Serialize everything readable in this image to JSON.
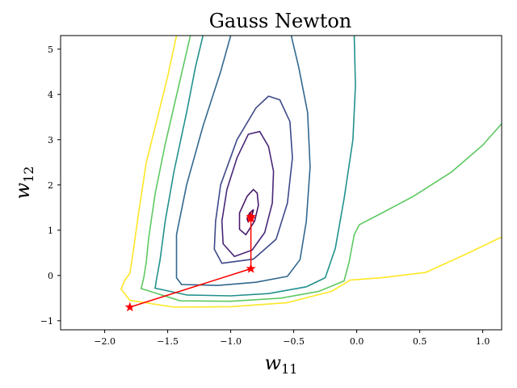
{
  "chart_data": {
    "type": "contour",
    "title": "Gauss Newton",
    "xlabel": "w",
    "xlabel_sub": "11",
    "ylabel": "w",
    "ylabel_sub": "12",
    "xlim": [
      -2.35,
      1.15
    ],
    "ylim": [
      -1.2,
      5.3
    ],
    "xticks": [
      -2.0,
      -1.5,
      -1.0,
      -0.5,
      0.0,
      0.5,
      1.0
    ],
    "xtick_labels": [
      "−2.0",
      "−1.5",
      "−1.0",
      "−0.5",
      "0.0",
      "0.5",
      "1.0"
    ],
    "yticks": [
      -1,
      0,
      1,
      2,
      3,
      4,
      5
    ],
    "ytick_labels": [
      "−1",
      "0",
      "1",
      "2",
      "3",
      "4",
      "5"
    ],
    "grid": false,
    "contours": [
      {
        "color": "#440154",
        "points": [
          [
            -0.86,
            1.18
          ],
          [
            -0.83,
            1.34
          ],
          [
            -0.82,
            1.45
          ],
          [
            -0.85,
            1.38
          ],
          [
            -0.87,
            1.25
          ],
          [
            -0.86,
            1.18
          ]
        ]
      },
      {
        "color": "#481a6c",
        "points": [
          [
            -0.88,
            0.9
          ],
          [
            -0.81,
            1.2
          ],
          [
            -0.78,
            1.55
          ],
          [
            -0.79,
            1.82
          ],
          [
            -0.82,
            1.9
          ],
          [
            -0.87,
            1.75
          ],
          [
            -0.93,
            1.38
          ],
          [
            -0.93,
            1.02
          ],
          [
            -0.88,
            0.9
          ]
        ]
      },
      {
        "color": "#482878",
        "points": [
          [
            -0.97,
            0.42
          ],
          [
            -0.83,
            0.56
          ],
          [
            -0.73,
            0.95
          ],
          [
            -0.67,
            1.6
          ],
          [
            -0.66,
            2.3
          ],
          [
            -0.7,
            2.85
          ],
          [
            -0.77,
            3.18
          ],
          [
            -0.86,
            3.12
          ],
          [
            -0.95,
            2.6
          ],
          [
            -1.03,
            1.9
          ],
          [
            -1.07,
            1.2
          ],
          [
            -1.06,
            0.7
          ],
          [
            -0.97,
            0.42
          ]
        ]
      },
      {
        "color": "#3e4989",
        "points": [
          [
            -1.07,
            0.27
          ],
          [
            -0.82,
            0.36
          ],
          [
            -0.64,
            0.8
          ],
          [
            -0.55,
            1.6
          ],
          [
            -0.51,
            2.6
          ],
          [
            -0.53,
            3.4
          ],
          [
            -0.61,
            3.88
          ],
          [
            -0.7,
            3.96
          ],
          [
            -0.8,
            3.7
          ],
          [
            -0.95,
            3.0
          ],
          [
            -1.08,
            2.0
          ],
          [
            -1.12,
            1.2
          ],
          [
            -1.13,
            0.58
          ],
          [
            -1.07,
            0.27
          ]
        ]
      },
      {
        "color": "#31688e",
        "points": [
          [
            -1.39,
            -0.2
          ],
          [
            -1.1,
            -0.22
          ],
          [
            -0.8,
            -0.15
          ],
          [
            -0.55,
            -0.02
          ],
          [
            -0.45,
            0.35
          ],
          [
            -0.4,
            1.2
          ],
          [
            -0.37,
            2.4
          ],
          [
            -0.39,
            3.6
          ],
          [
            -0.46,
            4.6
          ],
          [
            -0.52,
            5.3
          ]
        ]
      },
      {
        "color": "#31688e",
        "points": [
          [
            -1.39,
            -0.2
          ],
          [
            -1.43,
            -0.05
          ],
          [
            -1.43,
            0.9
          ],
          [
            -1.35,
            2.0
          ],
          [
            -1.22,
            3.3
          ],
          [
            -1.08,
            4.5
          ],
          [
            -1.0,
            5.3
          ]
        ]
      },
      {
        "color": "#21918c",
        "points": [
          [
            -1.6,
            -0.28
          ],
          [
            -1.35,
            -0.43
          ],
          [
            -1.0,
            -0.45
          ],
          [
            -0.7,
            -0.4
          ],
          [
            -0.4,
            -0.25
          ],
          [
            -0.25,
            -0.05
          ],
          [
            -0.17,
            0.6
          ],
          [
            -0.1,
            1.7
          ],
          [
            -0.03,
            3.0
          ],
          [
            -0.01,
            4.2
          ],
          [
            -0.02,
            5.3
          ]
        ]
      },
      {
        "color": "#21918c",
        "points": [
          [
            -1.6,
            -0.28
          ],
          [
            -1.59,
            -0.1
          ],
          [
            -1.56,
            0.35
          ],
          [
            -1.52,
            1.2
          ],
          [
            -1.45,
            2.3
          ],
          [
            -1.35,
            3.6
          ],
          [
            -1.28,
            4.6
          ],
          [
            -1.22,
            5.3
          ]
        ]
      },
      {
        "color": "#5ec962",
        "points": [
          [
            -1.71,
            -0.29
          ],
          [
            -1.4,
            -0.56
          ],
          [
            -1.0,
            -0.57
          ],
          [
            -0.6,
            -0.5
          ],
          [
            -0.3,
            -0.35
          ],
          [
            -0.1,
            -0.12
          ],
          [
            -0.06,
            0.3
          ],
          [
            -0.02,
            0.9
          ],
          [
            0.02,
            1.12
          ],
          [
            0.2,
            1.38
          ],
          [
            0.45,
            1.75
          ],
          [
            0.75,
            2.28
          ],
          [
            1.0,
            2.88
          ],
          [
            1.15,
            3.35
          ]
        ]
      },
      {
        "color": "#5ec962",
        "points": [
          [
            -1.71,
            -0.29
          ],
          [
            -1.69,
            -0.05
          ],
          [
            -1.67,
            0.3
          ],
          [
            -1.65,
            0.85
          ],
          [
            -1.6,
            1.8
          ],
          [
            -1.52,
            2.9
          ],
          [
            -1.42,
            4.1
          ],
          [
            -1.32,
            5.3
          ]
        ]
      },
      {
        "color": "#fde725",
        "points": [
          [
            -1.87,
            -0.3
          ],
          [
            -1.8,
            -0.55
          ],
          [
            -1.45,
            -0.7
          ],
          [
            -1.0,
            -0.69
          ],
          [
            -0.55,
            -0.6
          ],
          [
            -0.2,
            -0.35
          ],
          [
            -0.05,
            -0.1
          ],
          [
            0.2,
            -0.05
          ],
          [
            0.55,
            0.07
          ],
          [
            0.85,
            0.45
          ],
          [
            1.15,
            0.85
          ]
        ]
      },
      {
        "color": "#fde725",
        "points": [
          [
            -1.87,
            -0.3
          ],
          [
            -1.84,
            -0.1
          ],
          [
            -1.8,
            0.05
          ],
          [
            -1.77,
            0.6
          ],
          [
            -1.73,
            1.4
          ],
          [
            -1.67,
            2.5
          ],
          [
            -1.58,
            3.5
          ],
          [
            -1.5,
            4.4
          ],
          [
            -1.43,
            5.3
          ]
        ]
      }
    ],
    "path": {
      "color": "#ff0000",
      "points": [
        [
          -1.8,
          -0.7
        ],
        [
          -0.84,
          0.15
        ],
        [
          -0.84,
          1.3
        ],
        [
          -0.84,
          1.26
        ]
      ]
    }
  }
}
